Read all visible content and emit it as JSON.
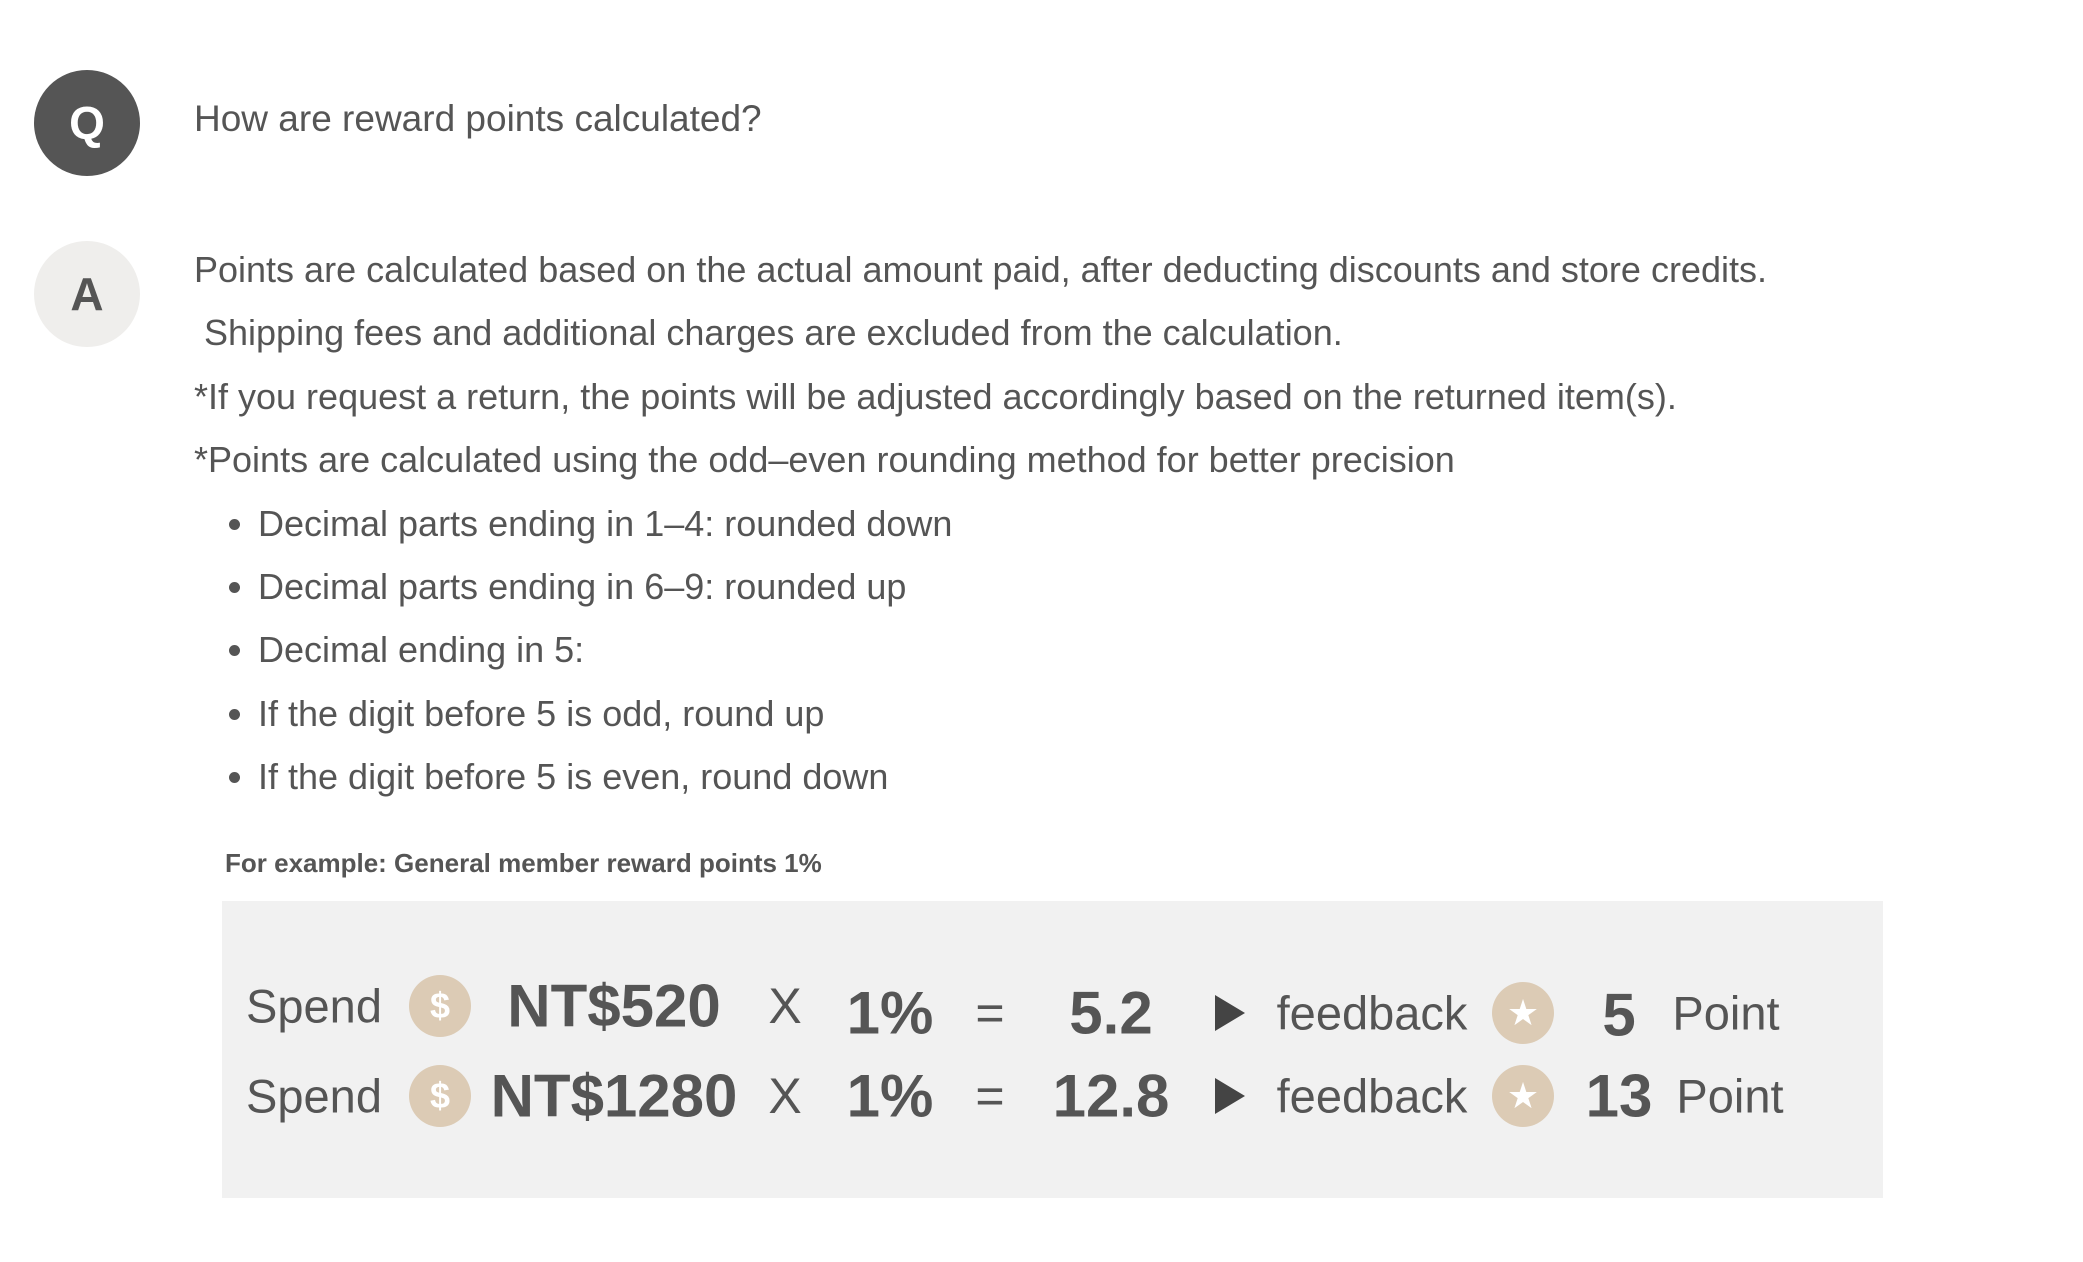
{
  "question": {
    "badge": "Q",
    "text": "How are reward points calculated?"
  },
  "answer": {
    "badge": "A",
    "lines": [
      "Points are calculated based on the actual amount paid, after deducting discounts and store credits.",
      " Shipping fees and additional charges are excluded from the calculation.",
      "*If you request a return, the points will be adjusted accordingly based on the returned item(s).",
      "*Points are calculated using the odd–even rounding method for better precision"
    ],
    "bullets": [
      "Decimal parts ending in 1–4: rounded down",
      "Decimal parts ending in 6–9: rounded up",
      "Decimal ending in 5:",
      "If the digit before 5 is odd, round up",
      "If the digit before 5 is even, round down"
    ]
  },
  "example": {
    "label": "For example: General member reward points 1%",
    "coin_color": "#dccbb5",
    "background": "#f1f1f1",
    "rows": [
      {
        "spend": "Spend",
        "coin": "$",
        "amount": "NT$520",
        "times": "X",
        "rate": "1%",
        "equals": "=",
        "result": "5.2",
        "feedback": "feedback",
        "points": "5",
        "unit": "Point"
      },
      {
        "spend": "Spend",
        "coin": "$",
        "amount": "NT$1280",
        "times": "X",
        "rate": "1%",
        "equals": "=",
        "result": "12.8",
        "feedback": "feedback",
        "points": "13",
        "unit": "Point"
      }
    ]
  }
}
